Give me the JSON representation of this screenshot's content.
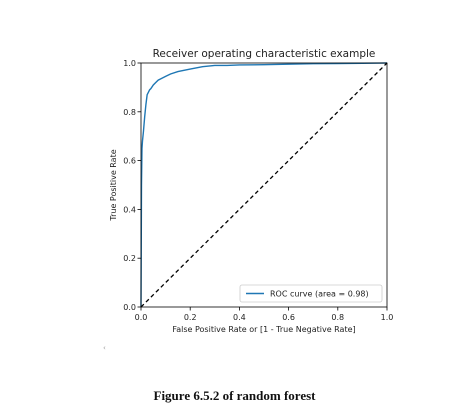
{
  "chart_data": {
    "type": "line",
    "title": "Receiver operating characteristic example",
    "xlabel": "False Positive Rate or [1 - True Negative Rate]",
    "ylabel": "True Positive Rate",
    "xlim": [
      0,
      1
    ],
    "ylim": [
      0,
      1
    ],
    "xticks": [
      "0.0",
      "0.2",
      "0.4",
      "0.6",
      "0.8",
      "1.0"
    ],
    "yticks": [
      "0.0",
      "0.2",
      "0.4",
      "0.6",
      "0.8",
      "1.0"
    ],
    "grid": false,
    "legend_position": "lower-right",
    "series": [
      {
        "name": "ROC curve (area = 0.98)",
        "color": "#1f77b4",
        "style": "solid",
        "x": [
          0,
          0.002,
          0.004,
          0.006,
          0.01,
          0.015,
          0.02,
          0.025,
          0.03,
          0.035,
          0.04,
          0.05,
          0.06,
          0.07,
          0.08,
          0.09,
          0.1,
          0.12,
          0.15,
          0.2,
          0.25,
          0.3,
          0.35,
          0.4,
          0.5,
          0.6,
          0.7,
          0.8,
          0.9,
          1.0
        ],
        "y": [
          0,
          0.5,
          0.65,
          0.68,
          0.72,
          0.78,
          0.83,
          0.87,
          0.88,
          0.89,
          0.895,
          0.91,
          0.92,
          0.93,
          0.935,
          0.94,
          0.945,
          0.955,
          0.965,
          0.975,
          0.985,
          0.99,
          0.99,
          0.992,
          0.993,
          0.995,
          0.997,
          0.998,
          0.999,
          1.0
        ]
      },
      {
        "name": "",
        "color": "#000000",
        "style": "dashed",
        "x": [
          0,
          1
        ],
        "y": [
          0,
          1
        ]
      }
    ]
  },
  "caption": "Figure 6.5.2 of random forest",
  "stray_mark": "‹"
}
